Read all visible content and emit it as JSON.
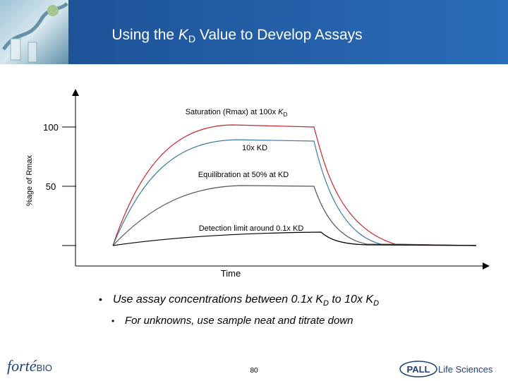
{
  "header": {
    "title": [
      "Using the ",
      "K",
      "D",
      " Value to Develop Assays"
    ]
  },
  "figure": {
    "y_axis_label": "%age of Rmax",
    "y_tick_labels": [
      100,
      50
    ],
    "x_axis_label": "Time",
    "annotations": {
      "saturation": [
        "Saturation (Rmax)  at 100x ",
        "K",
        "D"
      ],
      "ten_x": "10x KD",
      "equilibration": "Equilibration at 50% at KD",
      "detection": "Detection limit around 0.1x KD"
    }
  },
  "bullets": [
    {
      "bullet": "•",
      "text": [
        "Use assay concentrations between 0.1x K",
        "D",
        " to 10x K",
        "D"
      ]
    },
    {
      "bullet": "•",
      "text": [
        "For unknowns, use sample neat and titrate down"
      ]
    }
  ],
  "footer": {
    "logo_left": [
      "forté",
      "BIO"
    ],
    "page_number": 80,
    "logo_right": [
      "PALL",
      "Life Sciences"
    ]
  }
}
